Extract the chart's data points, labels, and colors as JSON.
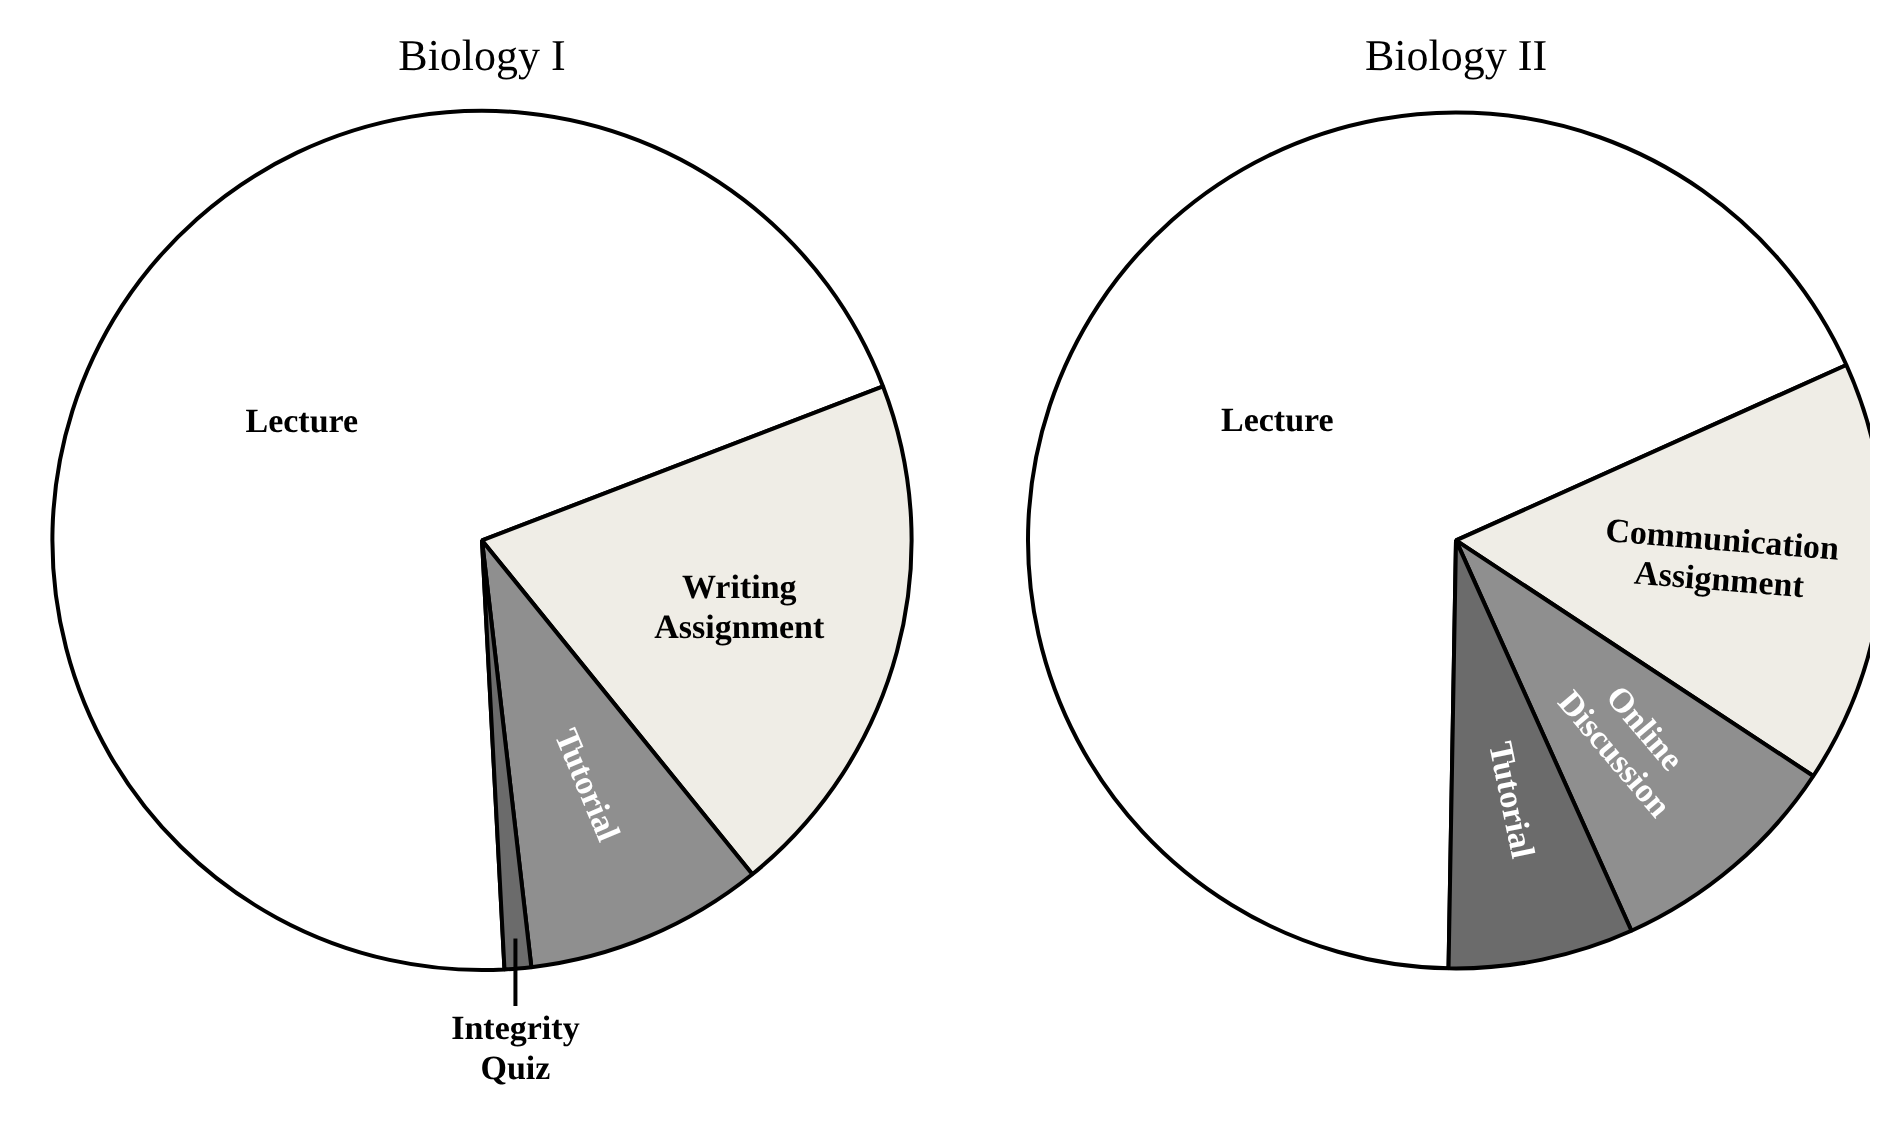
{
  "chart_data": [
    {
      "type": "pie",
      "title": "Biology I",
      "categories": [
        "Lecture",
        "Writing Assignment",
        "Tutorial",
        "Integrity Quiz"
      ],
      "values": [
        70,
        20,
        9,
        1
      ],
      "colors": [
        "#ffffff",
        "#efede6",
        "#8f8f8f",
        "#6b6b6b"
      ]
    },
    {
      "type": "pie",
      "title": "Biology II",
      "categories": [
        "Lecture",
        "Communication Assignment",
        "Online Discussion",
        "Tutorial"
      ],
      "values": [
        68,
        16,
        9,
        7
      ],
      "colors": [
        "#ffffff",
        "#efede6",
        "#8f8f8f",
        "#6b6b6b"
      ]
    }
  ]
}
